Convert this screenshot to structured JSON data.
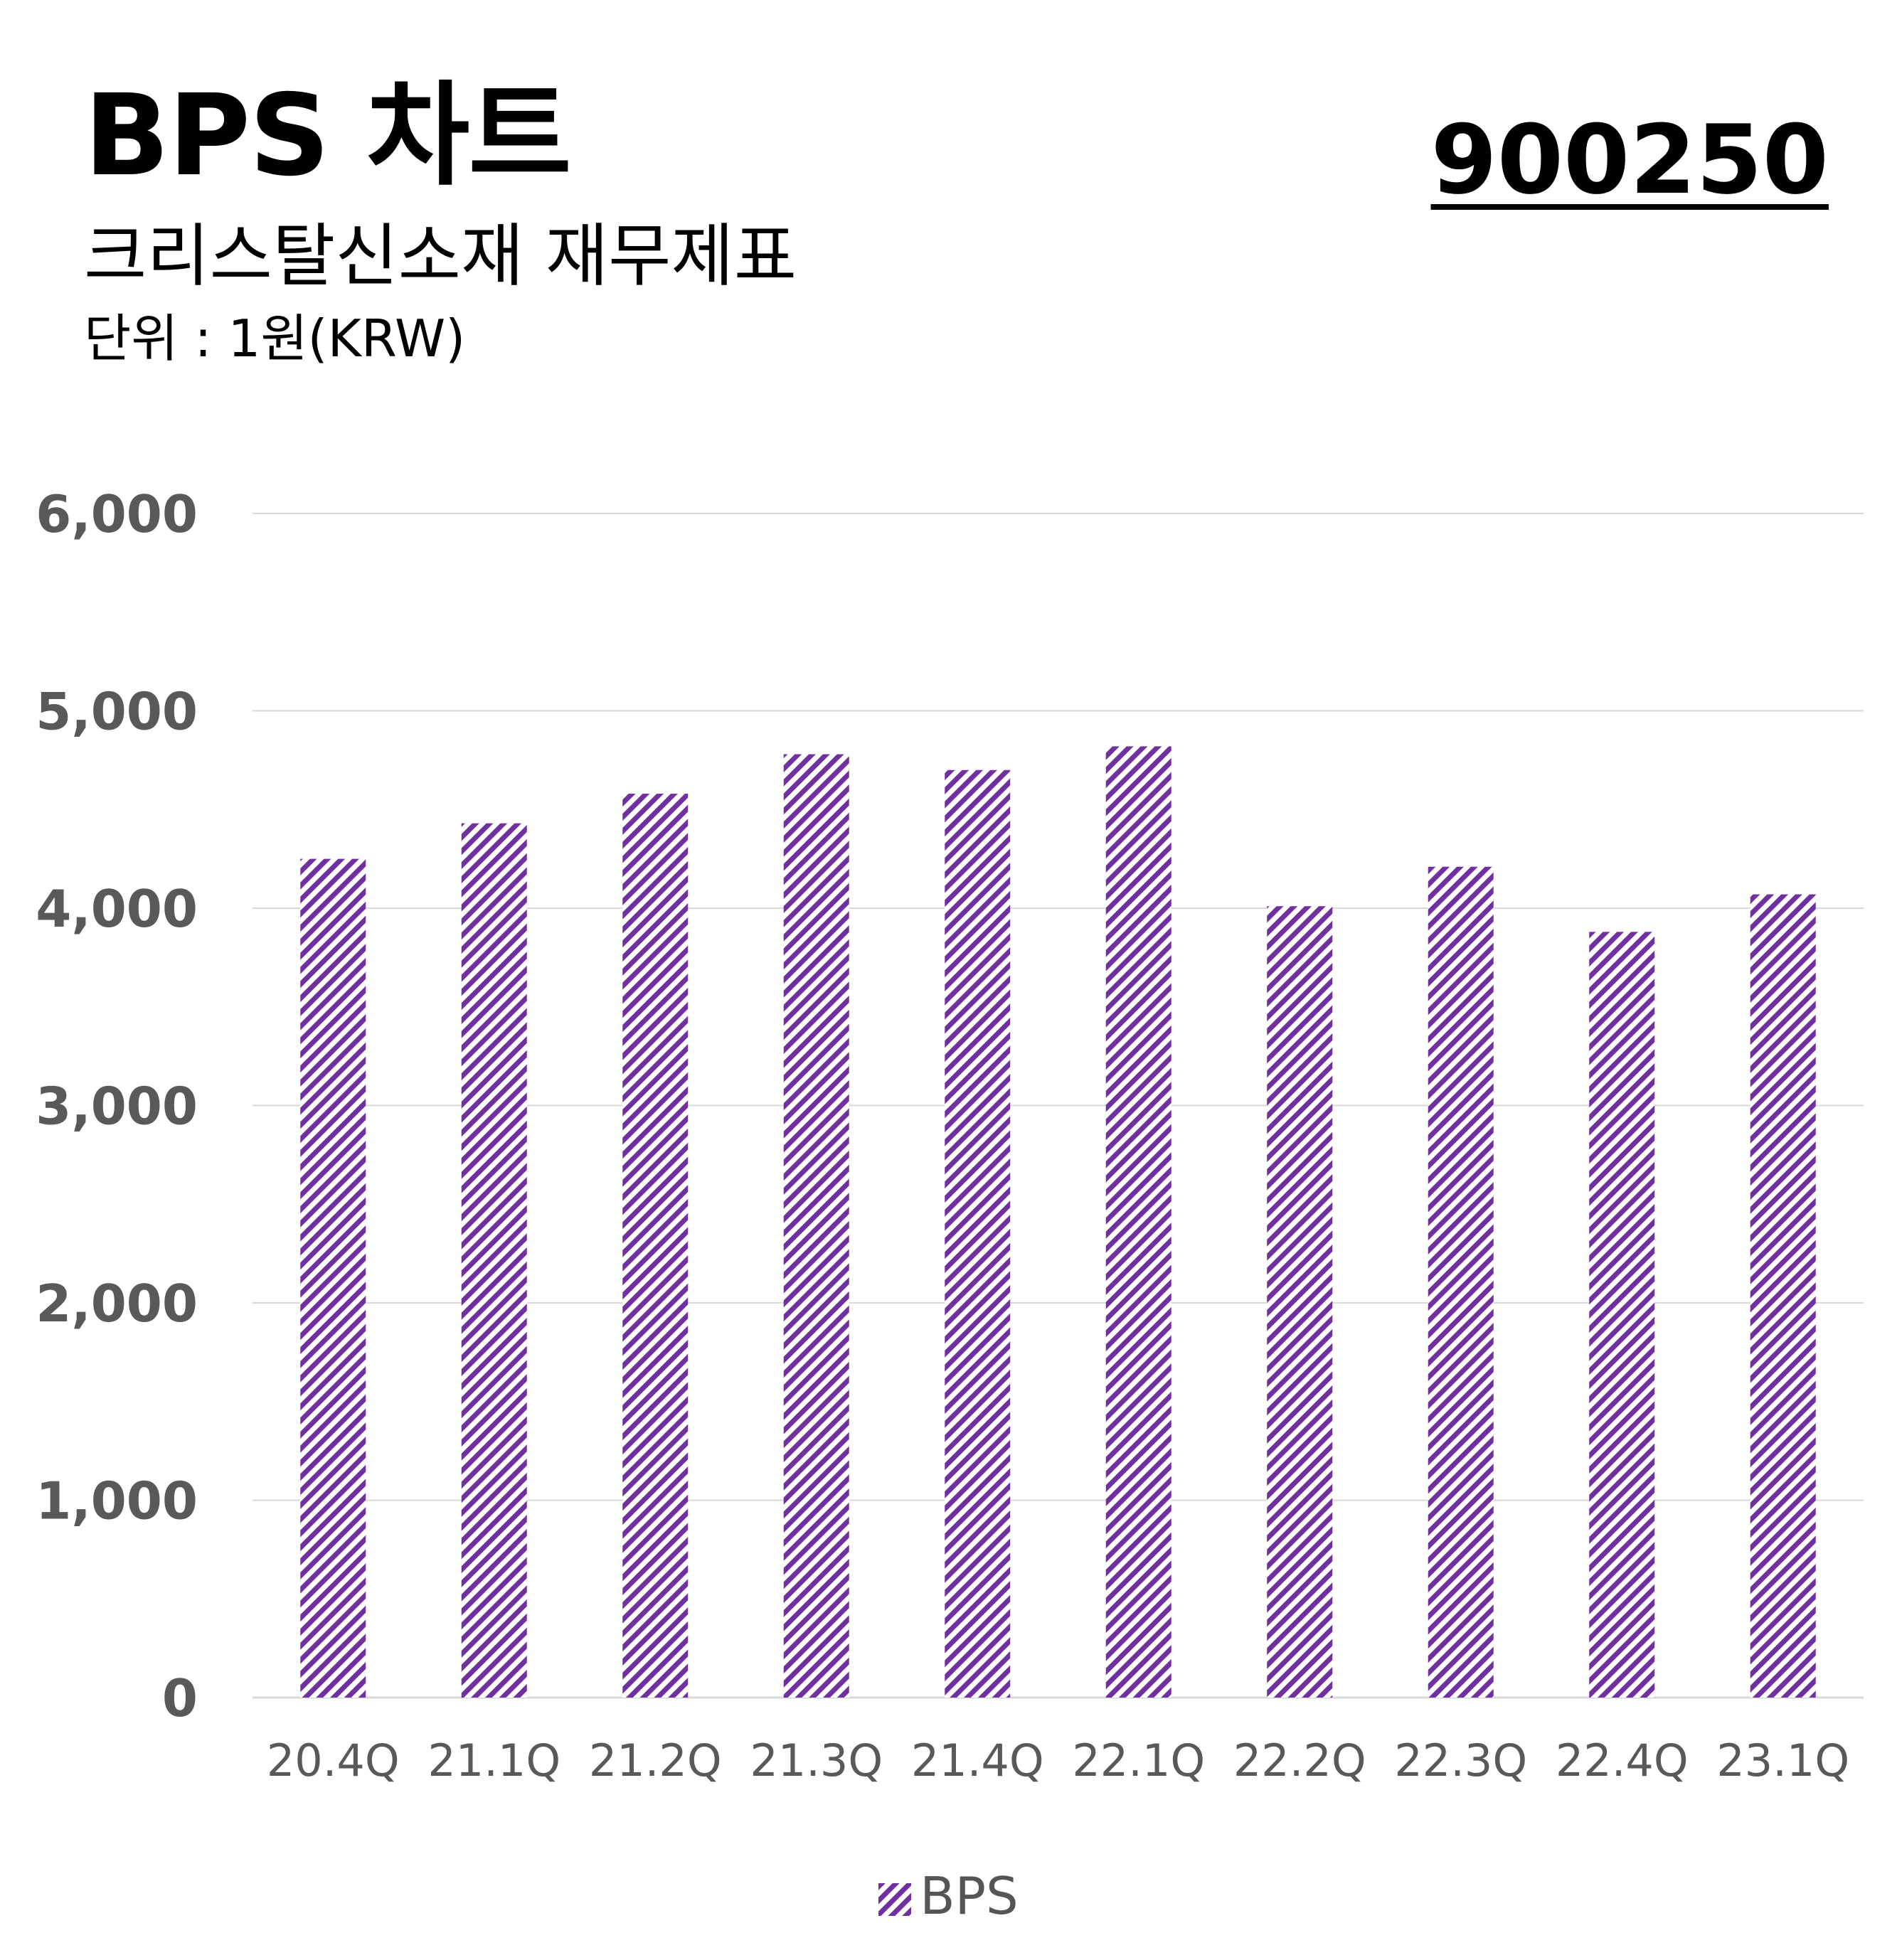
{
  "header": {
    "title": "BPS 차트",
    "subtitle": "크리스탈신소재 재무제표",
    "unit": "단위 : 1원(KRW)",
    "code": "900250"
  },
  "colors": {
    "bar": "#7030a0",
    "grid": "#d9d9d9",
    "axis_text": "#595959"
  },
  "chart_data": {
    "type": "bar",
    "title": "BPS 차트",
    "ylim": [
      0,
      6000
    ],
    "yticks": [
      "0",
      "1,000",
      "2,000",
      "3,000",
      "4,000",
      "5,000",
      "6,000"
    ],
    "ytick_values": [
      0,
      1000,
      2000,
      3000,
      4000,
      5000,
      6000
    ],
    "grid": true,
    "legend": "bottom",
    "categories": [
      "20.4Q",
      "21.1Q",
      "21.2Q",
      "21.3Q",
      "21.4Q",
      "22.1Q",
      "22.2Q",
      "22.3Q",
      "22.4Q",
      "23.1Q"
    ],
    "series": [
      {
        "name": "BPS",
        "values": [
          4250,
          4430,
          4580,
          4780,
          4700,
          4820,
          4010,
          4210,
          3880,
          4070
        ]
      }
    ]
  }
}
